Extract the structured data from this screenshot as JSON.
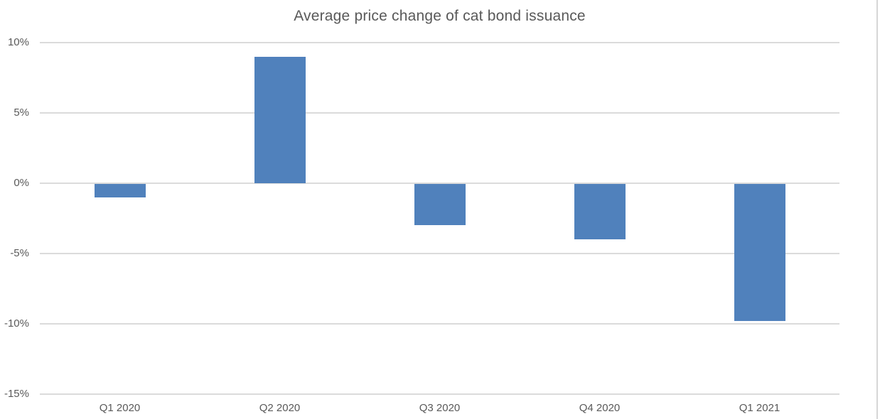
{
  "title": "Average price change of cat bond issuance",
  "colors": {
    "bar": "#5081BC",
    "gridline": "#DBDBDB",
    "text": "#595959",
    "background": "#FFFFFF"
  },
  "chart_data": {
    "type": "bar",
    "title": "Average price change of cat bond issuance",
    "categories": [
      "Q1 2020",
      "Q2 2020",
      "Q3 2020",
      "Q4 2020",
      "Q1 2021"
    ],
    "values": [
      -1,
      9,
      -3,
      -4,
      -9.8
    ],
    "xlabel": "",
    "ylabel": "",
    "ylim": [
      -15,
      10
    ],
    "yticks": [
      {
        "value": 10,
        "label": "10%"
      },
      {
        "value": 5,
        "label": "5%"
      },
      {
        "value": 0,
        "label": "0%"
      },
      {
        "value": -5,
        "label": "-5%"
      },
      {
        "value": -10,
        "label": "-10%"
      },
      {
        "value": -15,
        "label": "-15%"
      }
    ],
    "grid": true,
    "legend": false,
    "bar_color": "#5081BC"
  }
}
